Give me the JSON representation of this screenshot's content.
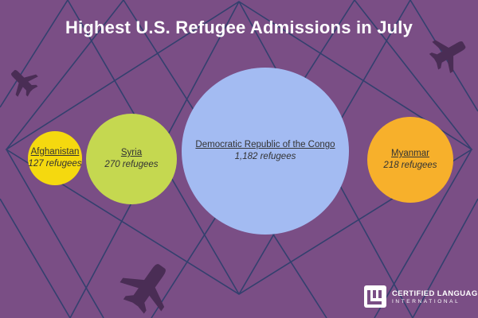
{
  "chart_data": {
    "type": "bubble",
    "title": "Highest U.S. Refugee Admissions in July",
    "unit": "refugees",
    "series": [
      {
        "name": "Afghanistan",
        "value": 127,
        "label": "127 refugees",
        "color": "#f5d90f"
      },
      {
        "name": "Syria",
        "value": 270,
        "label": "270 refugees",
        "color": "#c5d850"
      },
      {
        "name": "Democratic Republic of the Congo",
        "value": 1182,
        "label": "1,182 refugees",
        "color": "#a3bbf2"
      },
      {
        "name": "Myanmar",
        "value": 218,
        "label": "218 refugees",
        "color": "#f7b02b"
      }
    ]
  },
  "brand": {
    "line1": "CERTIFIED LANGUAGES",
    "line2": "INTERNATIONAL"
  },
  "icons": [
    "airplane-icon",
    "airplane-icon",
    "airplane-icon",
    "logo-icon"
  ],
  "colors": {
    "background": "#7a4e85",
    "lines": "#33406e",
    "plane": "#4a2d55",
    "text": "#333333"
  }
}
